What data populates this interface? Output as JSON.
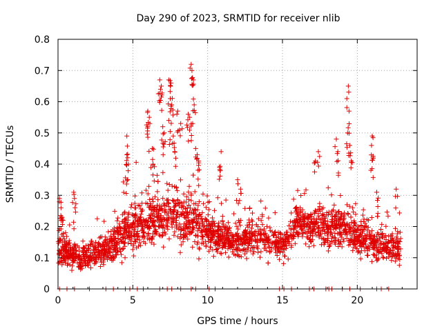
{
  "chart_data": {
    "type": "scatter",
    "title": "Day 290 of 2023, SRMTID for receiver nlib",
    "xlabel": "GPS time / hours",
    "ylabel": "SRMTID / TECUs",
    "xlim": [
      0,
      24
    ],
    "ylim": [
      0,
      0.8
    ],
    "xticks": [
      0,
      5,
      10,
      15,
      20
    ],
    "xtick_labels": [
      "0",
      "5",
      "10",
      "15",
      "20"
    ],
    "yticks": [
      0,
      0.1,
      0.2,
      0.3,
      0.4,
      0.5,
      0.6,
      0.7,
      0.8
    ],
    "ytick_labels": [
      "0",
      "0.1",
      "0.2",
      "0.3",
      "0.4",
      "0.5",
      "0.6",
      "0.7",
      "0.8"
    ],
    "grid": true,
    "marker": "plus",
    "marker_color": "#e00000",
    "series": [
      {
        "name": "SRMTID",
        "x_range": [
          0,
          22.9
        ],
        "spikes": [
          {
            "x": 0.1,
            "y": 0.29
          },
          {
            "x": 0.2,
            "y": 0.26
          },
          {
            "x": 0.25,
            "y": 0.23
          },
          {
            "x": 1.05,
            "y": 0.31
          },
          {
            "x": 1.1,
            "y": 0.29
          },
          {
            "x": 4.6,
            "y": 0.49
          },
          {
            "x": 4.6,
            "y": 0.43
          },
          {
            "x": 4.7,
            "y": 0.4
          },
          {
            "x": 6.0,
            "y": 0.57
          },
          {
            "x": 6.1,
            "y": 0.55
          },
          {
            "x": 6.0,
            "y": 0.52
          },
          {
            "x": 6.3,
            "y": 0.45
          },
          {
            "x": 6.35,
            "y": 0.4
          },
          {
            "x": 6.8,
            "y": 0.67
          },
          {
            "x": 6.9,
            "y": 0.65
          },
          {
            "x": 6.85,
            "y": 0.64
          },
          {
            "x": 7.0,
            "y": 0.52
          },
          {
            "x": 7.1,
            "y": 0.5
          },
          {
            "x": 7.4,
            "y": 0.67
          },
          {
            "x": 7.55,
            "y": 0.66
          },
          {
            "x": 7.5,
            "y": 0.61
          },
          {
            "x": 7.6,
            "y": 0.59
          },
          {
            "x": 7.4,
            "y": 0.54
          },
          {
            "x": 7.7,
            "y": 0.49
          },
          {
            "x": 7.8,
            "y": 0.44
          },
          {
            "x": 8.0,
            "y": 0.57
          },
          {
            "x": 8.2,
            "y": 0.53
          },
          {
            "x": 8.7,
            "y": 0.56
          },
          {
            "x": 8.8,
            "y": 0.55
          },
          {
            "x": 8.9,
            "y": 0.72
          },
          {
            "x": 8.95,
            "y": 0.7
          },
          {
            "x": 9.05,
            "y": 0.67
          },
          {
            "x": 9.1,
            "y": 0.59
          },
          {
            "x": 9.0,
            "y": 0.53
          },
          {
            "x": 9.2,
            "y": 0.45
          },
          {
            "x": 9.3,
            "y": 0.43
          },
          {
            "x": 9.4,
            "y": 0.41
          },
          {
            "x": 10.9,
            "y": 0.44
          },
          {
            "x": 10.8,
            "y": 0.39
          },
          {
            "x": 12.0,
            "y": 0.35
          },
          {
            "x": 12.2,
            "y": 0.32
          },
          {
            "x": 17.4,
            "y": 0.44
          },
          {
            "x": 17.2,
            "y": 0.41
          },
          {
            "x": 18.6,
            "y": 0.48
          },
          {
            "x": 18.7,
            "y": 0.44
          },
          {
            "x": 19.4,
            "y": 0.65
          },
          {
            "x": 19.45,
            "y": 0.57
          },
          {
            "x": 19.35,
            "y": 0.5
          },
          {
            "x": 19.5,
            "y": 0.46
          },
          {
            "x": 19.6,
            "y": 0.41
          },
          {
            "x": 21.0,
            "y": 0.49
          },
          {
            "x": 20.95,
            "y": 0.46
          },
          {
            "x": 21.05,
            "y": 0.42
          },
          {
            "x": 22.6,
            "y": 0.32
          },
          {
            "x": 21.3,
            "y": 0.31
          }
        ],
        "baseline_profile": [
          {
            "x": 0,
            "center": 0.13,
            "spread": 0.06
          },
          {
            "x": 1.5,
            "center": 0.1,
            "spread": 0.05
          },
          {
            "x": 3,
            "center": 0.12,
            "spread": 0.06
          },
          {
            "x": 4.5,
            "center": 0.18,
            "spread": 0.09
          },
          {
            "x": 6,
            "center": 0.22,
            "spread": 0.1
          },
          {
            "x": 7.5,
            "center": 0.24,
            "spread": 0.11
          },
          {
            "x": 9,
            "center": 0.22,
            "spread": 0.1
          },
          {
            "x": 10.5,
            "center": 0.17,
            "spread": 0.07
          },
          {
            "x": 12,
            "center": 0.15,
            "spread": 0.06
          },
          {
            "x": 13.5,
            "center": 0.17,
            "spread": 0.07
          },
          {
            "x": 15,
            "center": 0.14,
            "spread": 0.06
          },
          {
            "x": 16,
            "center": 0.21,
            "spread": 0.08
          },
          {
            "x": 18,
            "center": 0.2,
            "spread": 0.08
          },
          {
            "x": 19.5,
            "center": 0.19,
            "spread": 0.08
          },
          {
            "x": 21,
            "center": 0.14,
            "spread": 0.07
          },
          {
            "x": 22.9,
            "center": 0.13,
            "spread": 0.06
          }
        ],
        "zero_values_at_x": [
          0.1,
          0.6,
          1.1,
          2.1,
          3.2,
          3.7,
          4.5,
          4.8,
          5.3,
          5.7,
          6.8,
          7.3,
          7.6,
          8.2,
          8.9,
          9.2,
          10.1,
          10.5,
          14.8,
          15.1,
          15.6,
          16.8,
          17.1,
          17.9,
          18.1,
          18.3,
          19.0,
          19.5,
          20.2,
          21.3,
          21.6,
          22.1
        ]
      }
    ]
  }
}
